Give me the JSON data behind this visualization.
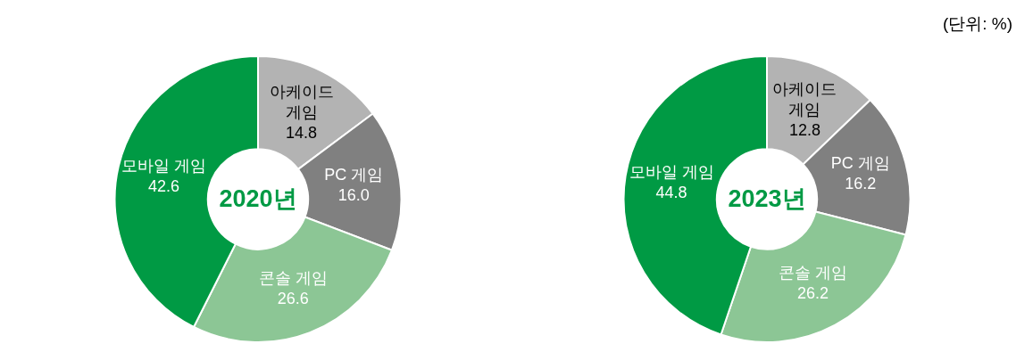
{
  "chart_data": [
    {
      "type": "donut",
      "title": "2020년",
      "categories": [
        "아케이드 게임",
        "PC 게임",
        "콘솔 게임",
        "모바일 게임"
      ],
      "values": [
        14.8,
        16.0,
        26.6,
        42.6
      ],
      "value_labels": [
        "14.8",
        "16.0",
        "26.6",
        "42.6"
      ],
      "colors": [
        "#b3b3b3",
        "#808080",
        "#8cc695",
        "#009a44"
      ],
      "data_labels": true,
      "legend": false
    },
    {
      "type": "donut",
      "title": "2023년",
      "categories": [
        "아케이드 게임",
        "PC 게임",
        "콘솔 게임",
        "모바일 게임"
      ],
      "values": [
        12.8,
        16.2,
        26.2,
        44.8
      ],
      "value_labels": [
        "12.8",
        "16.2",
        "26.2",
        "44.8"
      ],
      "colors": [
        "#b3b3b3",
        "#808080",
        "#8cc695",
        "#009a44"
      ],
      "data_labels": true,
      "legend": false,
      "annotations": [
        "(단위:  %)"
      ]
    }
  ]
}
